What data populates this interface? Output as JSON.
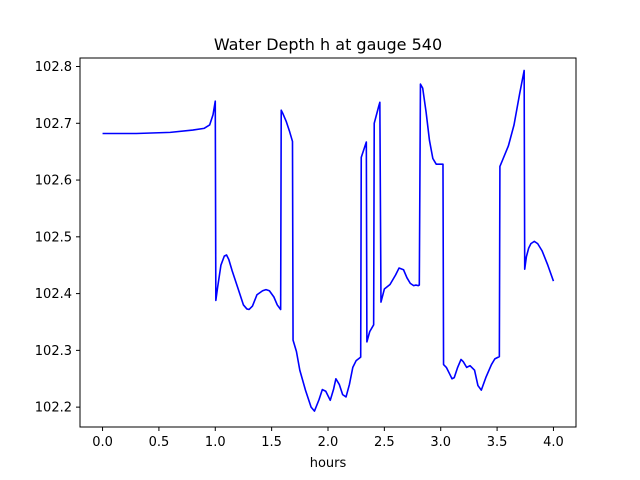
{
  "chart_data": {
    "type": "line",
    "title": "Water Depth h at gauge 540",
    "xlabel": "hours",
    "ylabel": "",
    "xlim": [
      -0.2,
      4.2
    ],
    "ylim": [
      102.165,
      102.815
    ],
    "xticks": [
      0.0,
      0.5,
      1.0,
      1.5,
      2.0,
      2.5,
      3.0,
      3.5,
      4.0
    ],
    "xtick_labels": [
      "0.0",
      "0.5",
      "1.0",
      "1.5",
      "2.0",
      "2.5",
      "3.0",
      "3.5",
      "4.0"
    ],
    "yticks": [
      102.2,
      102.3,
      102.4,
      102.5,
      102.6,
      102.7,
      102.8
    ],
    "ytick_labels": [
      "102.2",
      "102.3",
      "102.4",
      "102.5",
      "102.6",
      "102.7",
      "102.8"
    ],
    "grid": false,
    "legend": "none",
    "line_color": "#0000ff",
    "series": [
      {
        "x": [
          0.0,
          0.3,
          0.6,
          0.8,
          0.9,
          0.95,
          0.98,
          1.0,
          1.005,
          1.02,
          1.05,
          1.08,
          1.1,
          1.12,
          1.15,
          1.2,
          1.25,
          1.28,
          1.3,
          1.33,
          1.37,
          1.42,
          1.45,
          1.48,
          1.52,
          1.55,
          1.58,
          1.585,
          1.6,
          1.63,
          1.66,
          1.685,
          1.69,
          1.72,
          1.75,
          1.8,
          1.85,
          1.88,
          1.92,
          1.95,
          1.98,
          2.02,
          2.05,
          2.07,
          2.1,
          2.13,
          2.16,
          2.19,
          2.22,
          2.25,
          2.29,
          2.295,
          2.34,
          2.345,
          2.37,
          2.405,
          2.41,
          2.45,
          2.46,
          2.47,
          2.5,
          2.55,
          2.6,
          2.63,
          2.67,
          2.7,
          2.73,
          2.76,
          2.78,
          2.8,
          2.81,
          2.82,
          2.84,
          2.87,
          2.9,
          2.93,
          2.96,
          2.98,
          3.0,
          3.02,
          3.025,
          3.05,
          3.08,
          3.1,
          3.12,
          3.15,
          3.18,
          3.2,
          3.23,
          3.26,
          3.3,
          3.33,
          3.36,
          3.4,
          3.45,
          3.48,
          3.52,
          3.525,
          3.55,
          3.6,
          3.65,
          3.7,
          3.74,
          3.745,
          3.76,
          3.78,
          3.8,
          3.83,
          3.86,
          3.9,
          3.95,
          4.0
        ],
        "y": [
          102.682,
          102.682,
          102.684,
          102.688,
          102.691,
          102.697,
          102.715,
          102.739,
          102.388,
          102.41,
          102.45,
          102.466,
          102.468,
          102.46,
          102.44,
          102.41,
          102.38,
          102.373,
          102.372,
          102.378,
          102.398,
          102.405,
          102.407,
          102.405,
          102.394,
          102.38,
          102.372,
          102.723,
          102.717,
          102.703,
          102.685,
          102.668,
          102.318,
          102.298,
          102.265,
          102.23,
          102.2,
          102.193,
          102.213,
          102.231,
          102.228,
          102.212,
          102.232,
          102.25,
          102.24,
          102.222,
          102.218,
          102.24,
          102.27,
          102.282,
          102.288,
          102.64,
          102.667,
          102.315,
          102.333,
          102.345,
          102.7,
          102.73,
          102.737,
          102.385,
          102.408,
          102.416,
          102.433,
          102.445,
          102.442,
          102.428,
          102.418,
          102.414,
          102.415,
          102.414,
          102.415,
          102.769,
          102.762,
          102.72,
          102.67,
          102.638,
          102.628,
          102.628,
          102.628,
          102.628,
          102.275,
          102.27,
          102.258,
          102.25,
          102.252,
          102.27,
          102.284,
          102.28,
          102.27,
          102.273,
          102.265,
          102.238,
          102.23,
          102.252,
          102.275,
          102.285,
          102.289,
          102.624,
          102.636,
          102.66,
          102.697,
          102.752,
          102.793,
          102.443,
          102.465,
          102.48,
          102.488,
          102.492,
          102.488,
          102.475,
          102.45,
          102.422
        ]
      }
    ]
  }
}
